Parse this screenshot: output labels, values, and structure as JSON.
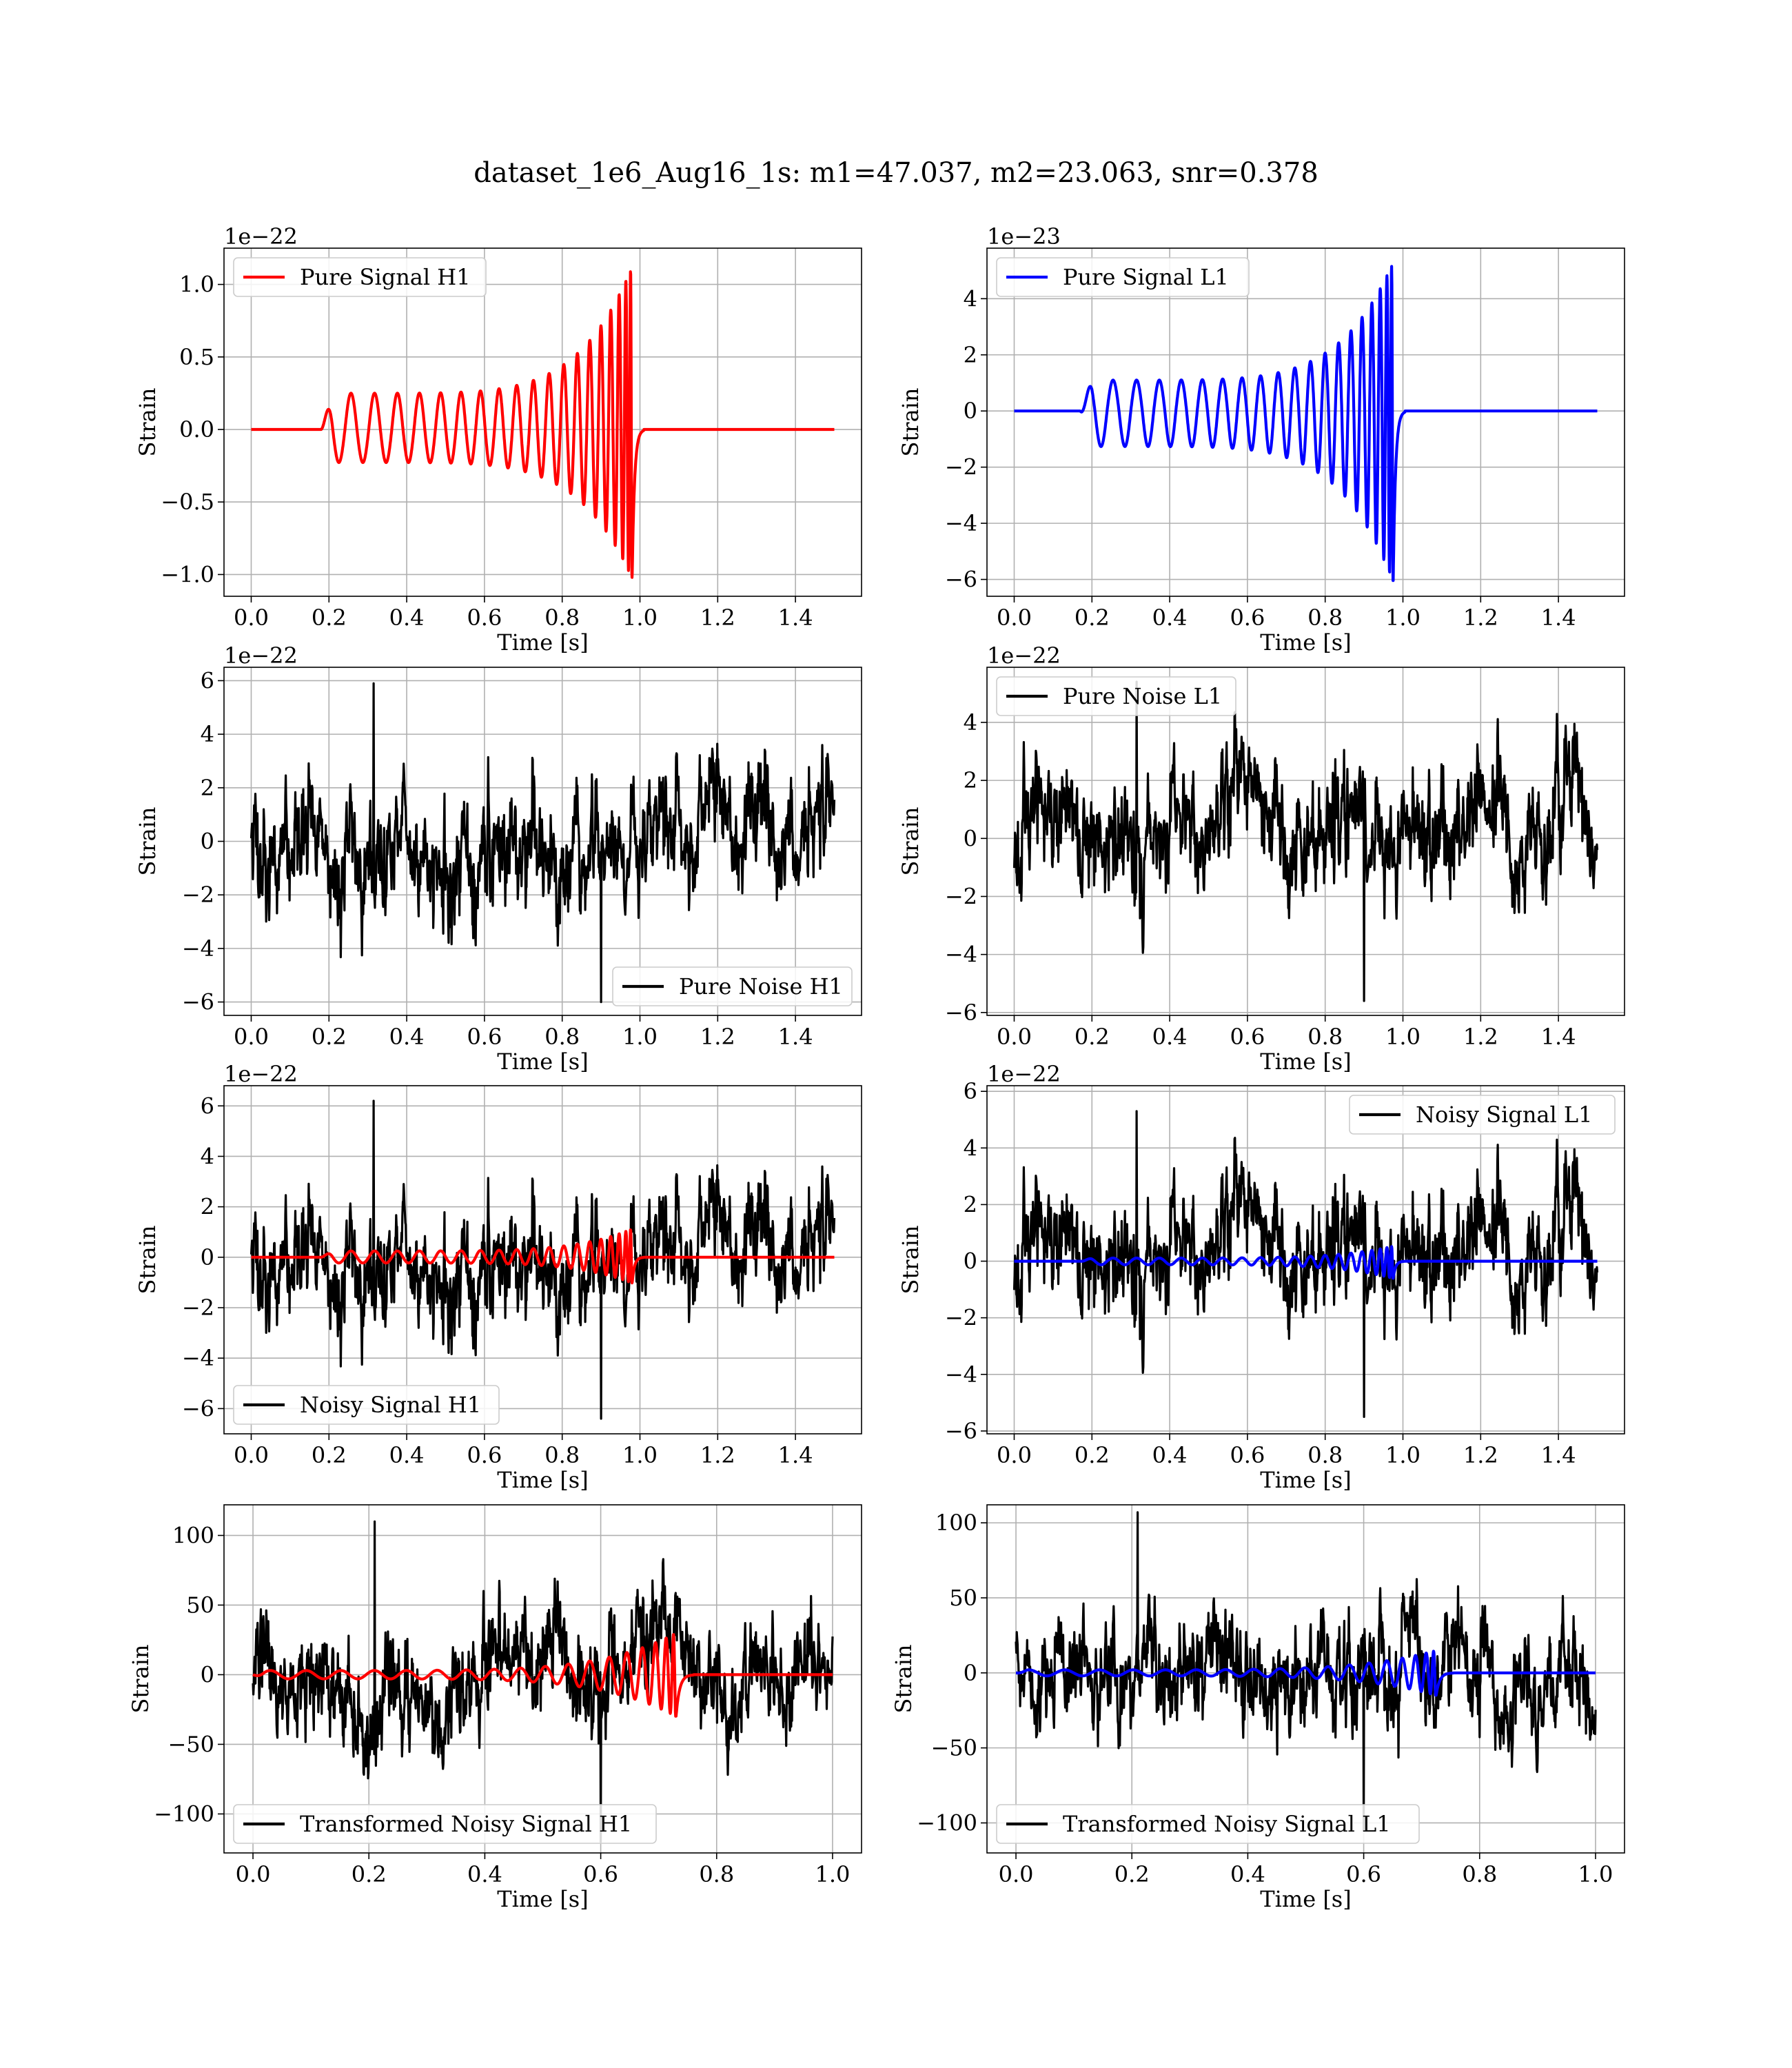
{
  "title": "dataset_1e6_Aug16_1s: m1=47.037, m2=23.063, snr=0.378",
  "chart_data": [
    {
      "id": "pure-signal-h1",
      "type": "line",
      "xlabel": "Time [s]",
      "ylabel": "Strain",
      "offset": "1e−22",
      "xlim": [
        -0.07,
        1.57
      ],
      "ylim": [
        -1.15,
        1.25
      ],
      "xticks": [
        0,
        0.2,
        0.4,
        0.6,
        0.8,
        1.0,
        1.2,
        1.4
      ],
      "xtick_labels": [
        "0.0",
        "0.2",
        "0.4",
        "0.6",
        "0.8",
        "1.0",
        "1.2",
        "1.4"
      ],
      "yticks": [
        -1,
        -0.5,
        0,
        0.5,
        1
      ],
      "ytick_labels": [
        "−1.0",
        "−0.5",
        "0.0",
        "0.5",
        "1.0"
      ],
      "legend": {
        "label": "Pure Signal H1",
        "color": "#ff0000",
        "loc": "upper left"
      },
      "series": [
        {
          "name": "Pure Signal H1",
          "color": "#ff0000",
          "kind": "chirp",
          "x_start": 0.0,
          "x_end": 1.5,
          "t_on": 0.18,
          "t_merge": 0.98,
          "amp_start": 0.25,
          "amp_peak": 1.13,
          "amp_min": -1.03
        }
      ],
      "grid": true
    },
    {
      "id": "pure-signal-l1",
      "type": "line",
      "xlabel": "Time [s]",
      "ylabel": "Strain",
      "offset": "1e−23",
      "xlim": [
        -0.07,
        1.57
      ],
      "ylim": [
        -6.6,
        5.8
      ],
      "xticks": [
        0,
        0.2,
        0.4,
        0.6,
        0.8,
        1.0,
        1.2,
        1.4
      ],
      "xtick_labels": [
        "0.0",
        "0.2",
        "0.4",
        "0.6",
        "0.8",
        "1.0",
        "1.2",
        "1.4"
      ],
      "yticks": [
        -6,
        -4,
        -2,
        0,
        2,
        4
      ],
      "ytick_labels": [
        "−6",
        "−4",
        "−2",
        "0",
        "2",
        "4"
      ],
      "legend": {
        "label": "Pure Signal L1",
        "color": "#0000ff",
        "loc": "upper left"
      },
      "series": [
        {
          "name": "Pure Signal L1",
          "color": "#0000ff",
          "kind": "chirp",
          "x_start": 0.0,
          "x_end": 1.5,
          "t_on": 0.17,
          "t_merge": 0.975,
          "amp_start": 1.1,
          "amp_peak": 5.3,
          "amp_min": -6.1
        }
      ],
      "grid": true
    },
    {
      "id": "pure-noise-h1",
      "type": "line",
      "xlabel": "Time [s]",
      "ylabel": "Strain",
      "offset": "1e−22",
      "xlim": [
        -0.07,
        1.57
      ],
      "ylim": [
        -6.5,
        6.5
      ],
      "xticks": [
        0,
        0.2,
        0.4,
        0.6,
        0.8,
        1.0,
        1.2,
        1.4
      ],
      "xtick_labels": [
        "0.0",
        "0.2",
        "0.4",
        "0.6",
        "0.8",
        "1.0",
        "1.2",
        "1.4"
      ],
      "yticks": [
        -6,
        -4,
        -2,
        0,
        2,
        4,
        6
      ],
      "ytick_labels": [
        "−6",
        "−4",
        "−2",
        "0",
        "2",
        "4",
        "6"
      ],
      "legend": {
        "label": "Pure Noise H1",
        "color": "#000000",
        "loc": "lower right"
      },
      "series": [
        {
          "name": "Pure Noise H1",
          "color": "#000000",
          "kind": "noise",
          "x_start": 0.0,
          "x_end": 1.5,
          "sigma": 1.6,
          "max": 5.9,
          "min": -6.0,
          "seed": 11
        }
      ],
      "grid": true
    },
    {
      "id": "pure-noise-l1",
      "type": "line",
      "xlabel": "Time [s]",
      "ylabel": "Strain",
      "offset": "1e−22",
      "xlim": [
        -0.07,
        1.57
      ],
      "ylim": [
        -6.1,
        5.9
      ],
      "xticks": [
        0,
        0.2,
        0.4,
        0.6,
        0.8,
        1.0,
        1.2,
        1.4
      ],
      "xtick_labels": [
        "0.0",
        "0.2",
        "0.4",
        "0.6",
        "0.8",
        "1.0",
        "1.2",
        "1.4"
      ],
      "yticks": [
        -6,
        -4,
        -2,
        0,
        2,
        4
      ],
      "ytick_labels": [
        "−6",
        "−4",
        "−2",
        "0",
        "2",
        "4"
      ],
      "legend": {
        "label": "Pure Noise L1",
        "color": "#000000",
        "loc": "upper left"
      },
      "series": [
        {
          "name": "Pure Noise L1",
          "color": "#000000",
          "kind": "noise",
          "x_start": 0.0,
          "x_end": 1.5,
          "sigma": 1.5,
          "max": 5.4,
          "min": -5.6,
          "seed": 23
        }
      ],
      "grid": true
    },
    {
      "id": "noisy-signal-h1",
      "type": "line",
      "xlabel": "Time [s]",
      "ylabel": "Strain",
      "offset": "1e−22",
      "xlim": [
        -0.07,
        1.57
      ],
      "ylim": [
        -7.0,
        6.8
      ],
      "xticks": [
        0,
        0.2,
        0.4,
        0.6,
        0.8,
        1.0,
        1.2,
        1.4
      ],
      "xtick_labels": [
        "0.0",
        "0.2",
        "0.4",
        "0.6",
        "0.8",
        "1.0",
        "1.2",
        "1.4"
      ],
      "yticks": [
        -6,
        -4,
        -2,
        0,
        2,
        4,
        6
      ],
      "ytick_labels": [
        "−6",
        "−4",
        "−2",
        "0",
        "2",
        "4",
        "6"
      ],
      "legend": {
        "label": "Noisy Signal H1",
        "color": "#000000",
        "loc": "lower left"
      },
      "series": [
        {
          "name": "Noisy Signal H1",
          "color": "#000000",
          "kind": "noise",
          "x_start": 0.0,
          "x_end": 1.5,
          "sigma": 1.6,
          "max": 6.2,
          "min": -6.4,
          "seed": 11
        },
        {
          "name": "",
          "color": "#ff0000",
          "kind": "chirp",
          "x_start": 0.0,
          "x_end": 1.5,
          "t_on": 0.18,
          "t_merge": 0.98,
          "amp_start": 0.25,
          "amp_peak": 1.13,
          "amp_min": -1.03
        }
      ],
      "grid": true
    },
    {
      "id": "noisy-signal-l1",
      "type": "line",
      "xlabel": "Time [s]",
      "ylabel": "Strain",
      "offset": "1e−22",
      "xlim": [
        -0.07,
        1.57
      ],
      "ylim": [
        -6.1,
        6.2
      ],
      "xticks": [
        0,
        0.2,
        0.4,
        0.6,
        0.8,
        1.0,
        1.2,
        1.4
      ],
      "xtick_labels": [
        "0.0",
        "0.2",
        "0.4",
        "0.6",
        "0.8",
        "1.0",
        "1.2",
        "1.4"
      ],
      "yticks": [
        -6,
        -4,
        -2,
        0,
        2,
        4,
        6
      ],
      "ytick_labels": [
        "−6",
        "−4",
        "−2",
        "0",
        "2",
        "4",
        "6"
      ],
      "legend": {
        "label": "Noisy Signal L1",
        "color": "#000000",
        "loc": "upper right"
      },
      "series": [
        {
          "name": "Noisy Signal L1",
          "color": "#000000",
          "kind": "noise",
          "x_start": 0.0,
          "x_end": 1.5,
          "sigma": 1.5,
          "max": 5.3,
          "min": -5.5,
          "seed": 23
        },
        {
          "name": "",
          "color": "#0000ff",
          "kind": "chirp",
          "x_start": 0.0,
          "x_end": 1.5,
          "t_on": 0.17,
          "t_merge": 0.975,
          "amp_start": 0.11,
          "amp_peak": 0.53,
          "amp_min": -0.61
        }
      ],
      "grid": true
    },
    {
      "id": "transformed-noisy-signal-h1",
      "type": "line",
      "xlabel": "Time [s]",
      "ylabel": "Strain",
      "offset": "",
      "xlim": [
        -0.05,
        1.05
      ],
      "ylim": [
        -128,
        122
      ],
      "xticks": [
        0,
        0.2,
        0.4,
        0.6,
        0.8,
        1.0
      ],
      "xtick_labels": [
        "0.0",
        "0.2",
        "0.4",
        "0.6",
        "0.8",
        "1.0"
      ],
      "yticks": [
        -100,
        -50,
        0,
        50,
        100
      ],
      "ytick_labels": [
        "−100",
        "−50",
        "0",
        "50",
        "100"
      ],
      "legend": {
        "label": "Transformed Noisy Signal H1",
        "color": "#000000",
        "loc": "lower left"
      },
      "series": [
        {
          "name": "Transformed Noisy Signal H1",
          "color": "#000000",
          "kind": "noise",
          "x_start": 0.0,
          "x_end": 1.0,
          "sigma": 28,
          "max": 110,
          "min": -120,
          "seed": 37
        },
        {
          "name": "",
          "color": "#ff0000",
          "kind": "chirp",
          "x_start": 0.0,
          "x_end": 1.0,
          "t_on": 0.0,
          "t_merge": 0.73,
          "amp_start": 3,
          "amp_peak": 30,
          "amp_min": -30
        }
      ],
      "grid": true
    },
    {
      "id": "transformed-noisy-signal-l1",
      "type": "line",
      "xlabel": "Time [s]",
      "ylabel": "Strain",
      "offset": "",
      "xlim": [
        -0.05,
        1.05
      ],
      "ylim": [
        -120,
        112
      ],
      "xticks": [
        0,
        0.2,
        0.4,
        0.6,
        0.8,
        1.0
      ],
      "xtick_labels": [
        "0.0",
        "0.2",
        "0.4",
        "0.6",
        "0.8",
        "1.0"
      ],
      "yticks": [
        -100,
        -50,
        0,
        50,
        100
      ],
      "ytick_labels": [
        "−100",
        "−50",
        "0",
        "50",
        "100"
      ],
      "legend": {
        "label": "Transformed Noisy Signal L1",
        "color": "#000000",
        "loc": "lower left"
      },
      "series": [
        {
          "name": "Transformed Noisy Signal L1",
          "color": "#000000",
          "kind": "noise",
          "x_start": 0.0,
          "x_end": 1.0,
          "sigma": 26,
          "max": 107,
          "min": -105,
          "seed": 41
        },
        {
          "name": "",
          "color": "#0000ff",
          "kind": "chirp",
          "x_start": 0.0,
          "x_end": 1.0,
          "t_on": 0.0,
          "t_merge": 0.725,
          "amp_start": 2,
          "amp_peak": 15,
          "amp_min": -15
        }
      ],
      "grid": true
    }
  ]
}
